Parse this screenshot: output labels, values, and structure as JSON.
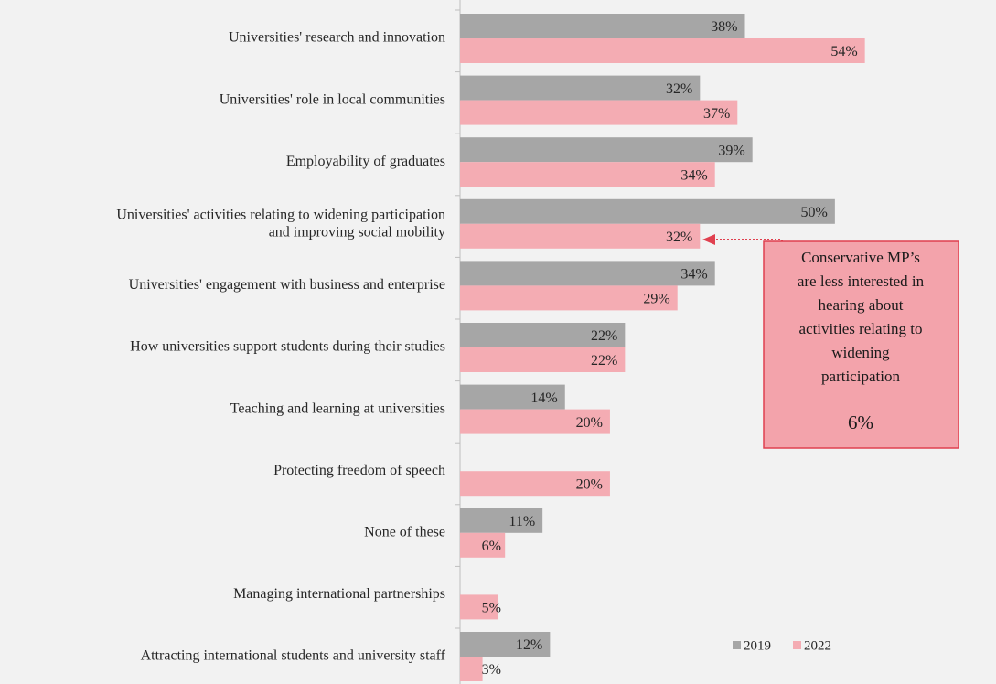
{
  "chart_data": {
    "type": "bar",
    "orientation": "horizontal",
    "categories": [
      "Universities' research and innovation",
      "Universities' role in local communities",
      "Employability of graduates",
      [
        "Universities' activities relating to widening participation",
        "and improving social mobility"
      ],
      "Universities' engagement with business and enterprise",
      "How universities support students during their studies",
      "Teaching and learning at universities",
      "Protecting freedom of speech",
      "None of these",
      "Managing international partnerships",
      "Attracting international students and university staff"
    ],
    "series": [
      {
        "name": "2019",
        "color": "#a6a6a6",
        "values": [
          38,
          32,
          39,
          50,
          34,
          22,
          14,
          null,
          11,
          null,
          12
        ],
        "value_labels": [
          "38%",
          "32%",
          "39%",
          "50%",
          "34%",
          "22%",
          "14%",
          null,
          "11%",
          null,
          "12%"
        ]
      },
      {
        "name": "2022",
        "color": "#f4acb3",
        "values": [
          54,
          37,
          34,
          32,
          29,
          22,
          20,
          20,
          6,
          5,
          3
        ],
        "value_labels": [
          "54%",
          "37%",
          "34%",
          "32%",
          "29%",
          "22%",
          "20%",
          "20%",
          "6%",
          "5%",
          "3%"
        ]
      }
    ],
    "xlim": [
      0,
      71
    ],
    "annotation": {
      "lines": [
        "Conservative MP’s",
        "are less interested in",
        "hearing about",
        "activities relating to",
        "widening",
        "participation"
      ],
      "value_label": "6%"
    }
  }
}
